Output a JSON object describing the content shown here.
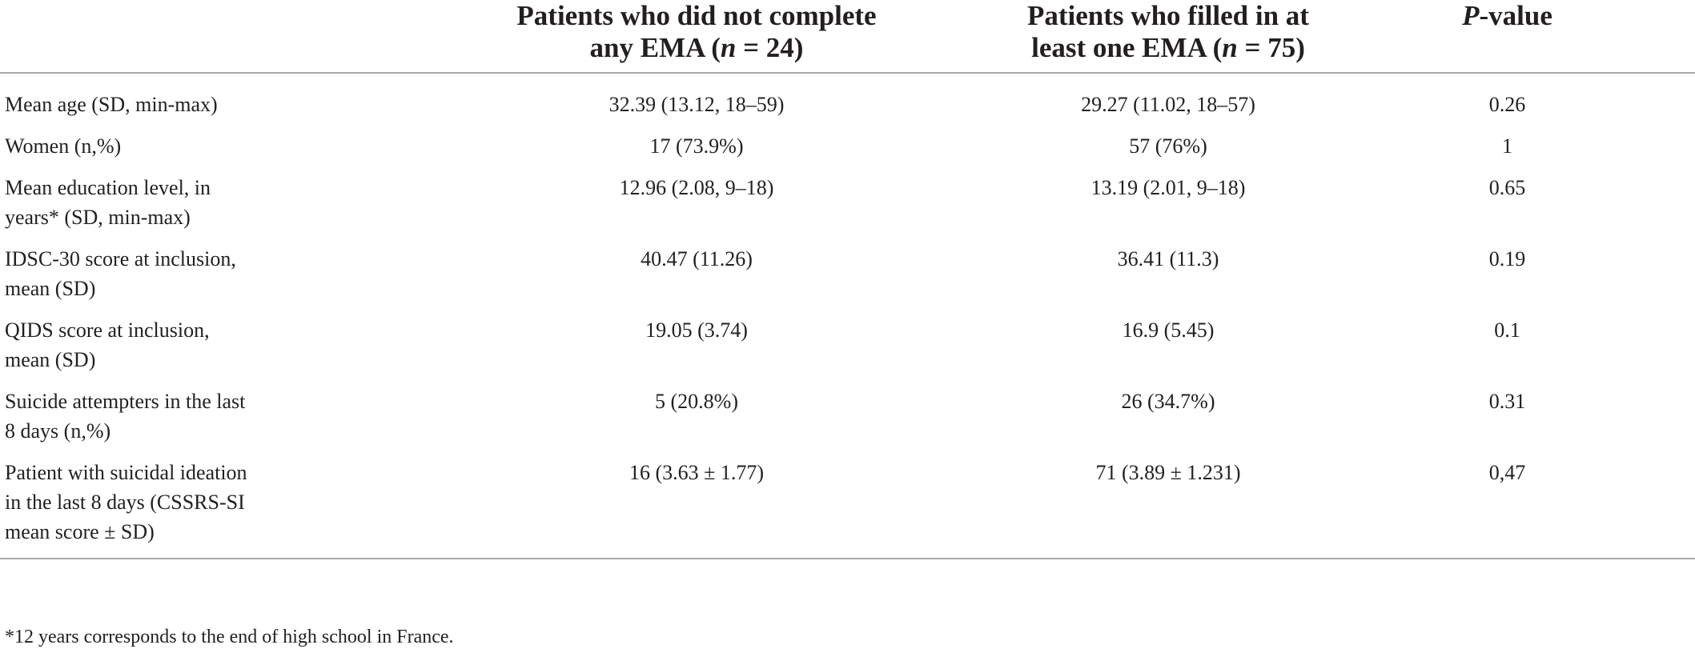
{
  "header": {
    "col_group1_line1": "Patients who did not complete",
    "col_group1_line2_pre": "any EMA (",
    "col_group1_line2_n": "n",
    "col_group1_line2_post": " = 24)",
    "col_group2_line1": "Patients who filled in at",
    "col_group2_line2_pre": "least one EMA (",
    "col_group2_line2_n": "n",
    "col_group2_line2_post": " = 75)",
    "col_p_italic": "P",
    "col_p_rest": "-value"
  },
  "rows": [
    {
      "label": "Mean age (SD, min-max)",
      "g1": "32.39 (13.12, 18–59)",
      "g2": "29.27 (11.02, 18–57)",
      "p": "0.26"
    },
    {
      "label": "Women (n,%)",
      "g1": "17 (73.9%)",
      "g2": "57 (76%)",
      "p": "1"
    },
    {
      "label": "Mean education level, in years* (SD, min-max)",
      "g1": "12.96 (2.08, 9–18)",
      "g2": "13.19 (2.01, 9–18)",
      "p": "0.65"
    },
    {
      "label": "IDSC-30 score at inclusion, mean (SD)",
      "g1": "40.47 (11.26)",
      "g2": "36.41 (11.3)",
      "p": "0.19"
    },
    {
      "label": "QIDS score at inclusion, mean (SD)",
      "g1": "19.05 (3.74)",
      "g2": "16.9 (5.45)",
      "p": "0.1"
    },
    {
      "label": "Suicide attempters in the last 8 days (n,%)",
      "g1": "5 (20.8%)",
      "g2": "26 (34.7%)",
      "p": "0.31"
    },
    {
      "label": "Patient with suicidal ideation in the last 8 days (CSSRS-SI mean score ± SD)",
      "g1": "16 (3.63 ± 1.77)",
      "g2": "71 (3.89 ± 1.231)",
      "p": "0,47"
    }
  ],
  "footnote": "*12 years corresponds to the end of high school in France."
}
